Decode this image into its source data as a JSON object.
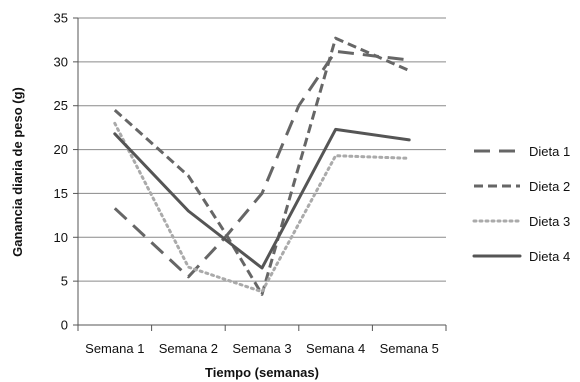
{
  "chart_data": {
    "type": "line",
    "xlabel": "Tiempo (semanas)",
    "ylabel": "Ganancia  diaria de peso (g)",
    "categories": [
      "Semana 1",
      "Semana 2",
      "Semana 3",
      "Semana 4",
      "Semana 5"
    ],
    "ylim": [
      0,
      35
    ],
    "yticks": [
      0,
      5,
      10,
      15,
      20,
      25,
      30,
      35
    ],
    "grid": true,
    "legend_position": "right",
    "series": [
      {
        "name": "Dieta 1",
        "style": "long-dash",
        "color": "#666666",
        "points": [
          {
            "x": 0.5,
            "y": 13.3
          },
          {
            "x": 1.5,
            "y": 5.5
          },
          {
            "x": 2.0,
            "y": 10.0
          },
          {
            "x": 2.5,
            "y": 15.0
          },
          {
            "x": 3.0,
            "y": 25.0
          },
          {
            "x": 3.5,
            "y": 31.2
          },
          {
            "x": 4.5,
            "y": 30.2
          }
        ]
      },
      {
        "name": "Dieta 2",
        "style": "short-dash",
        "color": "#666666",
        "points": [
          {
            "x": 0.5,
            "y": 24.5
          },
          {
            "x": 1.5,
            "y": 17.0
          },
          {
            "x": 2.0,
            "y": 10.5
          },
          {
            "x": 2.5,
            "y": 3.5
          },
          {
            "x": 3.5,
            "y": 32.7
          },
          {
            "x": 4.5,
            "y": 29.0
          }
        ]
      },
      {
        "name": "Dieta 3",
        "style": "dotted",
        "color": "#aaaaaa",
        "points": [
          {
            "x": 0.5,
            "y": 23.0
          },
          {
            "x": 1.5,
            "y": 6.6
          },
          {
            "x": 2.5,
            "y": 3.8
          },
          {
            "x": 3.5,
            "y": 19.3
          },
          {
            "x": 4.5,
            "y": 19.0
          }
        ]
      },
      {
        "name": "Dieta 4",
        "style": "solid",
        "color": "#555555",
        "points": [
          {
            "x": 0.5,
            "y": 21.8
          },
          {
            "x": 1.5,
            "y": 13.0
          },
          {
            "x": 2.5,
            "y": 6.5
          },
          {
            "x": 3.5,
            "y": 22.3
          },
          {
            "x": 4.5,
            "y": 21.1
          }
        ]
      }
    ]
  }
}
